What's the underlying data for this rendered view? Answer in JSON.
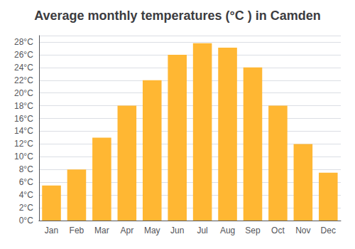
{
  "chart_data": {
    "type": "bar",
    "title": "Average monthly temperatures (°C ) in Camden",
    "categories": [
      "Jan",
      "Feb",
      "Mar",
      "Apr",
      "May",
      "Jun",
      "Jul",
      "Aug",
      "Sep",
      "Oct",
      "Nov",
      "Dec"
    ],
    "values": [
      5.5,
      8.0,
      13.0,
      18.0,
      22.0,
      26.0,
      27.8,
      27.1,
      24.0,
      18.0,
      12.0,
      7.5
    ],
    "color": "#FFB733",
    "ylim": [
      0,
      29
    ],
    "yticks": [
      {
        "value": 0,
        "label": "0°C"
      },
      {
        "value": 2,
        "label": "2°C"
      },
      {
        "value": 4,
        "label": "4°C"
      },
      {
        "value": 6,
        "label": "6°C"
      },
      {
        "value": 8,
        "label": "8°C"
      },
      {
        "value": 10,
        "label": "10°C"
      },
      {
        "value": 12,
        "label": "12°C"
      },
      {
        "value": 14,
        "label": "14°C"
      },
      {
        "value": 16,
        "label": "16°C"
      },
      {
        "value": 18,
        "label": "18°C"
      },
      {
        "value": 20,
        "label": "20°C"
      },
      {
        "value": 22,
        "label": "22°C"
      },
      {
        "value": 24,
        "label": "24°C"
      },
      {
        "value": 26,
        "label": "26°C"
      },
      {
        "value": 28,
        "label": "28°C"
      }
    ],
    "grid": true
  }
}
